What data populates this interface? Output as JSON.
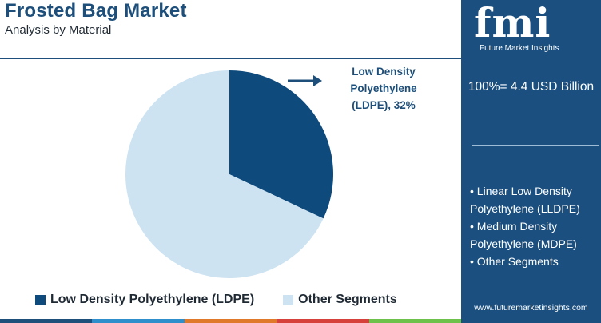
{
  "header": {
    "title": "Frosted Bag Market",
    "subtitle": "Analysis by Material"
  },
  "colors": {
    "ldpe": "#0e4a7c",
    "other": "#cde3f1",
    "sidebar": "#1a4f7f",
    "title": "#1d4f7a",
    "bottom_bar": [
      "#1d4f7a",
      "#2f8fcd",
      "#e07a2a",
      "#d6413b",
      "#6cc24a"
    ]
  },
  "chart_data": {
    "type": "pie",
    "categories": [
      "Low Density Polyethylene (LDPE)",
      "Other Segments"
    ],
    "values": [
      32,
      68
    ],
    "callout": "Low Density Polyethylene (LDPE), 32%",
    "legend": [
      "Low Density Polyethylene (LDPE)",
      "Other Segments"
    ]
  },
  "sidebar": {
    "logo_letters": "fmi",
    "logo_subtitle": "Future Market Insights",
    "total": "100%= 4.4 USD Billion",
    "segments": [
      "• Linear Low Density Polyethylene (LLDPE)",
      "• Medium Density Polyethylene (MDPE)",
      "• Other Segments"
    ],
    "url": "www.futuremarketinsights.com"
  }
}
